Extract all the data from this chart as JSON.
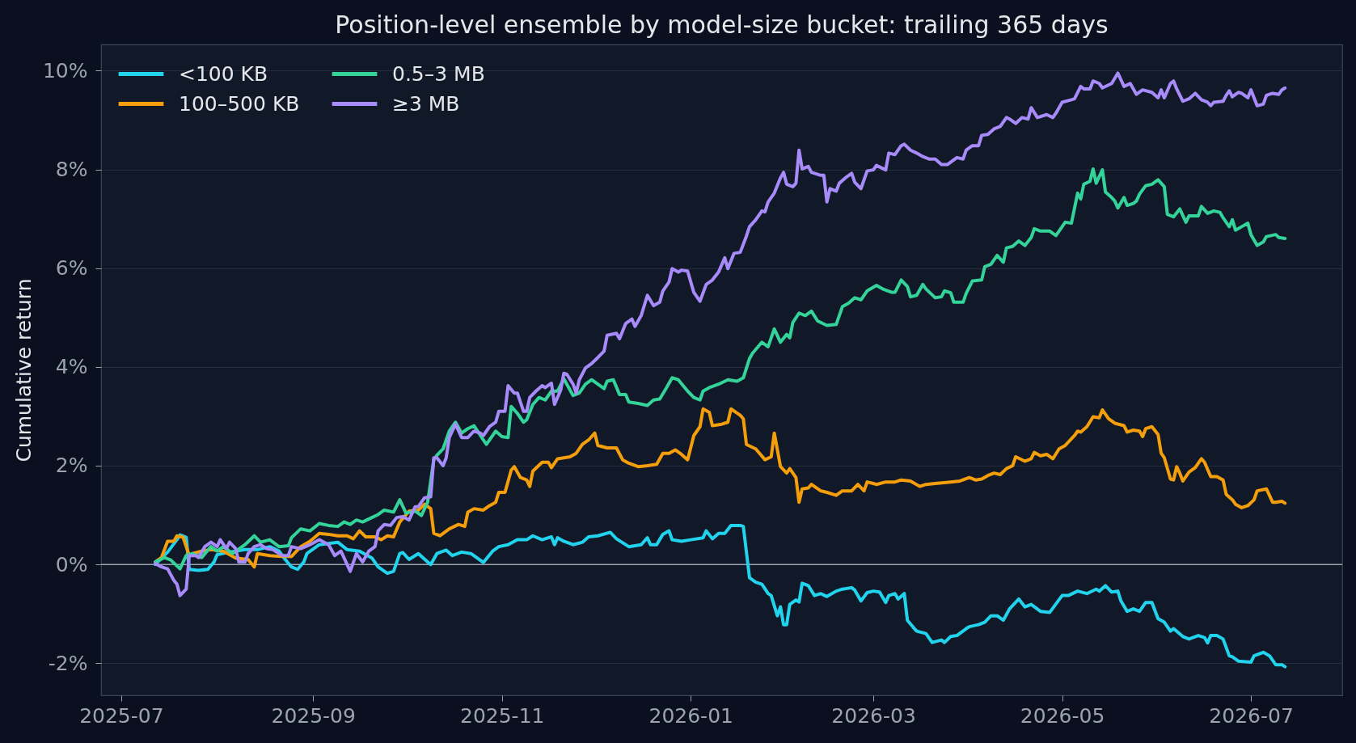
{
  "chart_data": {
    "type": "line",
    "title": "Position-level ensemble by model-size bucket: trailing 365 days",
    "ylabel": "Cumulative return",
    "xlim": [
      "2025-06-24T12:00",
      "2026-07-30T12:00"
    ],
    "xticks": [
      "2025-07",
      "2025-09",
      "2025-11",
      "2026-01",
      "2026-03",
      "2026-05",
      "2026-07"
    ],
    "ylim": [
      -2.65,
      10.53
    ],
    "yticks": [
      {
        "value": -2,
        "label": "-2%"
      },
      {
        "value": 0,
        "label": "0%"
      },
      {
        "value": 2,
        "label": "2%"
      },
      {
        "value": 4,
        "label": "4%"
      },
      {
        "value": 6,
        "label": "6%"
      },
      {
        "value": 8,
        "label": "8%"
      },
      {
        "value": 10,
        "label": "10%"
      }
    ],
    "grid": "y",
    "legend": "top left",
    "line_style": "solid",
    "ref_lines": [
      {
        "axis": "y",
        "value": 0,
        "color": "#9ca3af"
      }
    ],
    "series": [
      {
        "name": "<100 KB",
        "color": "#22d3ee",
        "x": [
          "2025-07-12",
          "2025-07-16",
          "2025-07-19",
          "2025-07-20",
          "2025-07-22",
          "2025-07-23",
          "2025-07-26",
          "2025-07-29",
          "2025-07-31",
          "2025-08-01",
          "2025-08-05",
          "2025-08-10",
          "2025-08-14",
          "2025-08-18",
          "2025-08-21",
          "2025-08-23",
          "2025-08-25",
          "2025-08-27",
          "2025-08-29",
          "2025-08-30",
          "2025-09-03",
          "2025-09-09",
          "2025-09-12",
          "2025-09-16",
          "2025-09-20",
          "2025-09-22",
          "2025-09-25",
          "2025-09-27",
          "2025-09-29",
          "2025-09-30",
          "2025-10-02",
          "2025-10-05",
          "2025-10-08",
          "2025-10-09",
          "2025-10-11",
          "2025-10-14",
          "2025-10-16",
          "2025-10-19",
          "2025-10-22",
          "2025-10-24",
          "2025-10-26",
          "2025-10-29",
          "2025-10-31",
          "2025-11-03",
          "2025-11-06",
          "2025-11-09",
          "2025-11-11",
          "2025-11-14",
          "2025-11-17",
          "2025-11-18",
          "2025-11-19",
          "2025-11-21",
          "2025-11-24",
          "2025-11-27",
          "2025-11-29",
          "2025-12-02",
          "2025-12-06",
          "2025-12-08",
          "2025-12-12",
          "2025-12-14",
          "2025-12-16",
          "2025-12-18",
          "2025-12-19",
          "2025-12-21",
          "2025-12-23",
          "2025-12-25",
          "2025-12-26",
          "2025-12-29",
          "2026-01-01",
          "2026-01-05",
          "2026-01-06",
          "2026-01-08",
          "2026-01-10",
          "2026-01-12",
          "2026-01-14",
          "2026-01-17",
          "2026-01-18",
          "2026-01-20",
          "2026-01-22",
          "2026-01-24",
          "2026-01-26",
          "2026-01-27",
          "2026-01-29",
          "2026-01-30",
          "2026-01-31",
          "2026-02-01",
          "2026-02-02",
          "2026-02-04",
          "2026-02-05",
          "2026-02-06",
          "2026-02-08",
          "2026-02-10",
          "2026-02-12",
          "2026-02-14",
          "2026-02-17",
          "2026-02-19",
          "2026-02-22",
          "2026-02-23",
          "2026-02-25",
          "2026-02-27",
          "2026-03-01",
          "2026-03-03",
          "2026-03-05",
          "2026-03-06",
          "2026-03-08",
          "2026-03-09",
          "2026-03-11",
          "2026-03-12",
          "2026-03-14",
          "2026-03-15",
          "2026-03-18",
          "2026-03-20",
          "2026-03-23",
          "2026-03-24",
          "2026-03-26",
          "2026-03-28",
          "2026-03-31",
          "2026-04-01",
          "2026-04-04",
          "2026-04-06",
          "2026-04-08",
          "2026-04-10",
          "2026-04-12",
          "2026-04-14",
          "2026-04-17",
          "2026-04-19",
          "2026-04-21",
          "2026-04-24",
          "2026-04-27",
          "2026-05-01",
          "2026-05-03",
          "2026-05-06",
          "2026-05-09",
          "2026-05-12",
          "2026-05-13",
          "2026-05-15",
          "2026-05-17",
          "2026-05-19",
          "2026-05-20",
          "2026-05-22",
          "2026-05-24",
          "2026-05-26",
          "2026-05-28",
          "2026-05-30",
          "2026-06-01",
          "2026-06-03",
          "2026-06-05",
          "2026-06-06",
          "2026-06-09",
          "2026-06-11",
          "2026-06-14",
          "2026-06-16",
          "2026-06-17",
          "2026-06-18",
          "2026-06-20",
          "2026-06-22",
          "2026-06-24",
          "2026-06-25",
          "2026-06-27",
          "2026-07-01",
          "2026-07-02",
          "2026-07-05",
          "2026-07-07",
          "2026-07-09",
          "2026-07-11",
          "2026-07-12"
        ],
        "values": [
          0.0,
          0.25,
          0.5,
          0.6,
          0.55,
          -0.1,
          -0.12,
          -0.1,
          0.05,
          0.2,
          0.25,
          0.3,
          0.3,
          0.36,
          0.27,
          0.1,
          -0.05,
          -0.1,
          0.05,
          0.22,
          0.4,
          0.45,
          0.3,
          0.27,
          0.13,
          -0.05,
          -0.18,
          -0.14,
          0.22,
          0.24,
          0.1,
          0.22,
          0.05,
          0.0,
          0.22,
          0.29,
          0.18,
          0.25,
          0.22,
          0.13,
          0.04,
          0.27,
          0.36,
          0.4,
          0.5,
          0.5,
          0.58,
          0.5,
          0.56,
          0.4,
          0.54,
          0.47,
          0.4,
          0.45,
          0.56,
          0.58,
          0.65,
          0.52,
          0.36,
          0.38,
          0.4,
          0.54,
          0.4,
          0.4,
          0.61,
          0.68,
          0.5,
          0.47,
          0.5,
          0.54,
          0.68,
          0.52,
          0.63,
          0.63,
          0.79,
          0.79,
          0.77,
          -0.27,
          -0.36,
          -0.4,
          -0.59,
          -0.63,
          -1.04,
          -0.86,
          -1.22,
          -1.22,
          -0.81,
          -0.72,
          -0.76,
          -0.38,
          -0.43,
          -0.63,
          -0.59,
          -0.65,
          -0.54,
          -0.5,
          -0.47,
          -0.52,
          -0.74,
          -0.57,
          -0.54,
          -0.56,
          -0.77,
          -0.63,
          -0.59,
          -0.7,
          -0.59,
          -1.13,
          -1.28,
          -1.35,
          -1.4,
          -1.58,
          -1.53,
          -1.58,
          -1.46,
          -1.44,
          -1.3,
          -1.26,
          -1.22,
          -1.17,
          -1.04,
          -1.04,
          -1.13,
          -0.9,
          -0.7,
          -0.86,
          -0.81,
          -0.95,
          -0.97,
          -0.63,
          -0.63,
          -0.54,
          -0.59,
          -0.5,
          -0.54,
          -0.43,
          -0.56,
          -0.54,
          -0.74,
          -0.95,
          -0.9,
          -0.95,
          -0.77,
          -0.77,
          -1.1,
          -1.17,
          -1.35,
          -1.3,
          -1.46,
          -1.51,
          -1.44,
          -1.48,
          -1.59,
          -1.44,
          -1.44,
          -1.51,
          -1.85,
          -1.87,
          -1.96,
          -1.98,
          -1.85,
          -1.78,
          -1.85,
          -2.03,
          -2.03,
          -2.07
        ]
      },
      {
        "name": "100–500 KB",
        "color": "#f59e0b",
        "x": [
          "2025-07-12",
          "2025-07-14",
          "2025-07-16",
          "2025-07-18",
          "2025-07-19",
          "2025-07-21",
          "2025-07-23",
          "2025-07-24",
          "2025-07-27",
          "2025-07-30",
          "2025-08-03",
          "2025-08-07",
          "2025-08-11",
          "2025-08-13",
          "2025-08-14",
          "2025-08-18",
          "2025-08-22",
          "2025-08-25",
          "2025-08-28",
          "2025-08-31",
          "2025-09-03",
          "2025-09-06",
          "2025-09-09",
          "2025-09-12",
          "2025-09-14",
          "2025-09-16",
          "2025-09-18",
          "2025-09-21",
          "2025-09-23",
          "2025-09-25",
          "2025-09-27",
          "2025-09-29",
          "2025-10-02",
          "2025-10-05",
          "2025-10-07",
          "2025-10-09",
          "2025-10-10",
          "2025-10-12",
          "2025-10-15",
          "2025-10-18",
          "2025-10-20",
          "2025-10-21",
          "2025-10-23",
          "2025-10-26",
          "2025-10-28",
          "2025-10-30",
          "2025-10-31",
          "2025-11-02",
          "2025-11-04",
          "2025-11-05",
          "2025-11-07",
          "2025-11-09",
          "2025-11-10",
          "2025-11-11",
          "2025-11-14",
          "2025-11-16",
          "2025-11-17",
          "2025-11-19",
          "2025-11-21",
          "2025-11-23",
          "2025-11-25",
          "2025-11-27",
          "2025-11-29",
          "2025-12-01",
          "2025-12-02",
          "2025-12-05",
          "2025-12-08",
          "2025-12-10",
          "2025-12-12",
          "2025-12-15",
          "2025-12-18",
          "2025-12-21",
          "2025-12-23",
          "2025-12-25",
          "2025-12-27",
          "2025-12-29",
          "2025-12-31",
          "2026-01-02",
          "2026-01-04",
          "2026-01-05",
          "2026-01-07",
          "2026-01-08",
          "2026-01-11",
          "2026-01-13",
          "2026-01-14",
          "2026-01-17",
          "2026-01-18",
          "2026-01-19",
          "2026-01-22",
          "2026-01-25",
          "2026-01-27",
          "2026-01-28",
          "2026-01-30",
          "2026-02-01",
          "2026-02-02",
          "2026-02-04",
          "2026-02-05",
          "2026-02-06",
          "2026-02-08",
          "2026-02-09",
          "2026-02-12",
          "2026-02-14",
          "2026-02-17",
          "2026-02-19",
          "2026-02-22",
          "2026-02-24",
          "2026-02-26",
          "2026-02-27",
          "2026-03-01",
          "2026-03-02",
          "2026-03-05",
          "2026-03-08",
          "2026-03-10",
          "2026-03-13",
          "2026-03-16",
          "2026-03-18",
          "2026-03-21",
          "2026-03-26",
          "2026-03-29",
          "2026-04-01",
          "2026-04-03",
          "2026-04-05",
          "2026-04-07",
          "2026-04-09",
          "2026-04-11",
          "2026-04-13",
          "2026-04-15",
          "2026-04-16",
          "2026-04-19",
          "2026-04-21",
          "2026-04-22",
          "2026-04-24",
          "2026-04-26",
          "2026-04-28",
          "2026-04-30",
          "2026-05-02",
          "2026-05-05",
          "2026-05-06",
          "2026-05-07",
          "2026-05-09",
          "2026-05-11",
          "2026-05-13",
          "2026-05-14",
          "2026-05-16",
          "2026-05-18",
          "2026-05-21",
          "2026-05-22",
          "2026-05-24",
          "2026-05-26",
          "2026-05-27",
          "2026-05-28",
          "2026-05-30",
          "2026-06-01",
          "2026-06-02",
          "2026-06-03",
          "2026-06-05",
          "2026-06-06",
          "2026-06-07",
          "2026-06-08",
          "2026-06-09",
          "2026-06-11",
          "2026-06-13",
          "2026-06-15",
          "2026-06-16",
          "2026-06-18",
          "2026-06-20",
          "2026-06-22",
          "2026-06-23",
          "2026-06-25",
          "2026-06-26",
          "2026-06-28",
          "2026-06-30",
          "2026-07-02",
          "2026-07-03",
          "2026-07-06",
          "2026-07-08",
          "2026-07-09",
          "2026-07-11",
          "2026-07-12"
        ],
        "values": [
          0.05,
          0.14,
          0.47,
          0.47,
          0.58,
          0.55,
          0.18,
          0.22,
          0.27,
          0.3,
          0.27,
          0.13,
          0.1,
          -0.05,
          0.22,
          0.18,
          0.16,
          0.16,
          0.36,
          0.47,
          0.63,
          0.61,
          0.58,
          0.58,
          0.52,
          0.68,
          0.56,
          0.56,
          0.5,
          0.58,
          0.56,
          0.86,
          1.08,
          1.1,
          1.22,
          1.13,
          0.63,
          0.58,
          0.72,
          0.81,
          0.77,
          1.06,
          1.13,
          1.1,
          1.19,
          1.26,
          1.46,
          1.46,
          1.91,
          1.98,
          1.76,
          1.71,
          1.58,
          1.89,
          2.07,
          2.07,
          1.96,
          2.14,
          2.16,
          2.18,
          2.25,
          2.43,
          2.52,
          2.66,
          2.41,
          2.36,
          2.36,
          2.12,
          2.05,
          1.98,
          2.0,
          2.03,
          2.25,
          2.25,
          2.32,
          2.23,
          2.12,
          2.61,
          2.79,
          3.15,
          3.08,
          2.81,
          2.84,
          2.88,
          3.15,
          3.02,
          2.95,
          2.43,
          2.34,
          2.12,
          2.18,
          2.66,
          1.98,
          1.85,
          1.94,
          1.76,
          1.26,
          1.53,
          1.55,
          1.62,
          1.49,
          1.46,
          1.4,
          1.49,
          1.49,
          1.62,
          1.49,
          1.67,
          1.64,
          1.62,
          1.67,
          1.67,
          1.71,
          1.69,
          1.58,
          1.62,
          1.64,
          1.67,
          1.69,
          1.76,
          1.71,
          1.73,
          1.8,
          1.85,
          1.82,
          1.94,
          2.0,
          2.18,
          2.09,
          2.14,
          2.27,
          2.2,
          2.23,
          2.14,
          2.34,
          2.41,
          2.61,
          2.7,
          2.68,
          2.79,
          2.99,
          2.97,
          3.13,
          2.95,
          2.86,
          2.81,
          2.68,
          2.72,
          2.7,
          2.59,
          2.75,
          2.79,
          2.63,
          2.25,
          2.16,
          1.73,
          1.71,
          1.98,
          1.85,
          1.69,
          1.87,
          1.96,
          2.14,
          2.07,
          1.78,
          1.78,
          1.71,
          1.42,
          1.31,
          1.22,
          1.15,
          1.19,
          1.31,
          1.49,
          1.53,
          1.26,
          1.26,
          1.28,
          1.24
        ]
      },
      {
        "name": "0.5–3 MB",
        "color": "#34d399",
        "x": [
          "2025-07-12",
          "2025-07-15",
          "2025-07-17",
          "2025-07-20",
          "2025-07-22",
          "2025-07-24",
          "2025-07-27",
          "2025-07-30",
          "2025-08-01",
          "2025-08-03",
          "2025-08-06",
          "2025-08-10",
          "2025-08-13",
          "2025-08-15",
          "2025-08-18",
          "2025-08-21",
          "2025-08-24",
          "2025-08-25",
          "2025-08-28",
          "2025-08-31",
          "2025-09-03",
          "2025-09-06",
          "2025-09-09",
          "2025-09-11",
          "2025-09-13",
          "2025-09-15",
          "2025-09-17",
          "2025-09-20",
          "2025-09-22",
          "2025-09-24",
          "2025-09-27",
          "2025-09-29",
          "2025-10-01",
          "2025-10-04",
          "2025-10-06",
          "2025-10-08",
          "2025-10-10",
          "2025-10-11",
          "2025-10-13",
          "2025-10-15",
          "2025-10-17",
          "2025-10-19",
          "2025-10-21",
          "2025-10-23",
          "2025-10-26",
          "2025-10-27",
          "2025-10-30",
          "2025-11-01",
          "2025-11-03",
          "2025-11-04",
          "2025-11-06",
          "2025-11-08",
          "2025-11-09",
          "2025-11-11",
          "2025-11-13",
          "2025-11-15",
          "2025-11-17",
          "2025-11-19",
          "2025-11-21",
          "2025-11-24",
          "2025-11-26",
          "2025-11-28",
          "2025-11-30",
          "2025-12-02",
          "2025-12-04",
          "2025-12-05",
          "2025-12-07",
          "2025-12-09",
          "2025-12-11",
          "2025-12-12",
          "2025-12-15",
          "2025-12-18",
          "2025-12-20",
          "2025-12-22",
          "2025-12-24",
          "2025-12-26",
          "2025-12-28",
          "2025-12-31",
          "2026-01-02",
          "2026-01-04",
          "2026-01-05",
          "2026-01-07",
          "2026-01-10",
          "2026-01-13",
          "2026-01-16",
          "2026-01-18",
          "2026-01-20",
          "2026-01-21",
          "2026-01-24",
          "2026-01-26",
          "2026-01-28",
          "2026-01-30",
          "2026-02-01",
          "2026-02-02",
          "2026-02-03",
          "2026-02-05",
          "2026-02-07",
          "2026-02-09",
          "2026-02-11",
          "2026-02-14",
          "2026-02-17",
          "2026-02-19",
          "2026-02-21",
          "2026-02-23",
          "2026-02-25",
          "2026-02-27",
          "2026-03-02",
          "2026-03-04",
          "2026-03-07",
          "2026-03-08",
          "2026-03-10",
          "2026-03-12",
          "2026-03-13",
          "2026-03-15",
          "2026-03-17",
          "2026-03-18",
          "2026-03-21",
          "2026-03-23",
          "2026-03-24",
          "2026-03-26",
          "2026-03-27",
          "2026-03-30",
          "2026-03-31",
          "2026-04-02",
          "2026-04-05",
          "2026-04-06",
          "2026-04-08",
          "2026-04-10",
          "2026-04-12",
          "2026-04-13",
          "2026-04-15",
          "2026-04-17",
          "2026-04-19",
          "2026-04-21",
          "2026-04-22",
          "2026-04-24",
          "2026-04-27",
          "2026-04-29",
          "2026-05-02",
          "2026-05-04",
          "2026-05-06",
          "2026-05-07",
          "2026-05-08",
          "2026-05-10",
          "2026-05-11",
          "2026-05-12",
          "2026-05-14",
          "2026-05-15",
          "2026-05-17",
          "2026-05-18",
          "2026-05-19",
          "2026-05-21",
          "2026-05-22",
          "2026-05-24",
          "2026-05-25",
          "2026-05-26",
          "2026-05-28",
          "2026-05-30",
          "2026-06-01",
          "2026-06-03",
          "2026-06-04",
          "2026-06-06",
          "2026-06-08",
          "2026-06-10",
          "2026-06-11",
          "2026-06-14",
          "2026-06-15",
          "2026-06-17",
          "2026-06-19",
          "2026-06-21",
          "2026-06-22",
          "2026-06-24",
          "2026-06-25",
          "2026-06-26",
          "2026-06-28",
          "2026-06-30",
          "2026-07-01",
          "2026-07-03",
          "2026-07-05",
          "2026-07-06",
          "2026-07-09",
          "2026-07-10",
          "2026-07-12"
        ],
        "values": [
          0.05,
          0.14,
          0.09,
          -0.09,
          0.18,
          0.22,
          0.14,
          0.36,
          0.27,
          0.36,
          0.22,
          0.4,
          0.58,
          0.45,
          0.5,
          0.36,
          0.38,
          0.54,
          0.72,
          0.68,
          0.83,
          0.79,
          0.77,
          0.86,
          0.81,
          0.9,
          0.86,
          0.95,
          1.01,
          1.1,
          1.06,
          1.31,
          1.04,
          1.08,
          0.99,
          1.26,
          2.12,
          2.21,
          2.34,
          2.7,
          2.88,
          2.66,
          2.75,
          2.81,
          2.52,
          2.43,
          2.7,
          2.59,
          2.57,
          3.2,
          3.06,
          2.88,
          2.93,
          3.24,
          3.38,
          3.33,
          3.51,
          3.51,
          3.76,
          3.42,
          3.47,
          3.65,
          3.74,
          3.65,
          3.56,
          3.71,
          3.74,
          3.44,
          3.44,
          3.29,
          3.26,
          3.22,
          3.33,
          3.35,
          3.56,
          3.78,
          3.74,
          3.51,
          3.38,
          3.33,
          3.51,
          3.58,
          3.65,
          3.74,
          3.71,
          3.78,
          4.17,
          4.28,
          4.5,
          4.41,
          4.77,
          4.5,
          4.66,
          4.59,
          4.9,
          5.09,
          5.04,
          5.13,
          4.93,
          4.84,
          4.86,
          5.22,
          5.29,
          5.4,
          5.36,
          5.54,
          5.65,
          5.58,
          5.51,
          5.51,
          5.76,
          5.63,
          5.42,
          5.45,
          5.67,
          5.58,
          5.4,
          5.42,
          5.54,
          5.5,
          5.31,
          5.31,
          5.49,
          5.74,
          5.76,
          6.03,
          6.08,
          6.26,
          6.12,
          6.41,
          6.44,
          6.55,
          6.46,
          6.62,
          6.8,
          6.75,
          6.75,
          6.66,
          6.93,
          6.91,
          7.52,
          7.4,
          7.7,
          7.76,
          8.01,
          7.72,
          7.99,
          7.54,
          7.43,
          7.36,
          7.22,
          7.43,
          7.27,
          7.31,
          7.36,
          7.5,
          7.67,
          7.7,
          7.79,
          7.65,
          7.09,
          7.04,
          7.2,
          6.93,
          7.06,
          7.06,
          7.25,
          7.11,
          7.16,
          7.13,
          7.02,
          6.84,
          6.98,
          6.77,
          6.84,
          6.91,
          6.68,
          6.46,
          6.53,
          6.64,
          6.68,
          6.62,
          6.6
        ]
      },
      {
        "name": "≥3 MB",
        "color": "#a78bfa",
        "x": [
          "2025-07-12",
          "2025-07-14",
          "2025-07-16",
          "2025-07-18",
          "2025-07-19",
          "2025-07-20",
          "2025-07-22",
          "2025-07-23",
          "2025-07-25",
          "2025-07-26",
          "2025-07-28",
          "2025-07-30",
          "2025-08-01",
          "2025-08-02",
          "2025-08-04",
          "2025-08-05",
          "2025-08-07",
          "2025-08-08",
          "2025-08-10",
          "2025-08-11",
          "2025-08-13",
          "2025-08-15",
          "2025-08-17",
          "2025-08-19",
          "2025-08-22",
          "2025-08-24",
          "2025-08-25",
          "2025-08-28",
          "2025-08-31",
          "2025-09-03",
          "2025-09-06",
          "2025-09-08",
          "2025-09-10",
          "2025-09-13",
          "2025-09-15",
          "2025-09-17",
          "2025-09-19",
          "2025-09-21",
          "2025-09-22",
          "2025-09-24",
          "2025-09-26",
          "2025-09-28",
          "2025-09-30",
          "2025-10-02",
          "2025-10-04",
          "2025-10-05",
          "2025-10-07",
          "2025-10-09",
          "2025-10-10",
          "2025-10-11",
          "2025-10-13",
          "2025-10-14",
          "2025-10-15",
          "2025-10-17",
          "2025-10-19",
          "2025-10-21",
          "2025-10-23",
          "2025-10-25",
          "2025-10-26",
          "2025-10-28",
          "2025-10-30",
          "2025-10-31",
          "2025-11-02",
          "2025-11-03",
          "2025-11-05",
          "2025-11-06",
          "2025-11-08",
          "2025-11-09",
          "2025-11-10",
          "2025-11-12",
          "2025-11-14",
          "2025-11-15",
          "2025-11-17",
          "2025-11-18",
          "2025-11-20",
          "2025-11-21",
          "2025-11-22",
          "2025-11-24",
          "2025-11-25",
          "2025-11-26",
          "2025-11-28",
          "2025-11-30",
          "2025-12-02",
          "2025-12-04",
          "2025-12-05",
          "2025-12-08",
          "2025-12-09",
          "2025-12-11",
          "2025-12-13",
          "2025-12-14",
          "2025-12-16",
          "2025-12-18",
          "2025-12-20",
          "2025-12-22",
          "2025-12-23",
          "2025-12-25",
          "2025-12-26",
          "2025-12-28",
          "2025-12-29",
          "2025-12-31",
          "2026-01-02",
          "2026-01-04",
          "2026-01-06",
          "2026-01-08",
          "2026-01-10",
          "2026-01-12",
          "2026-01-13",
          "2026-01-15",
          "2026-01-17",
          "2026-01-19",
          "2026-01-20",
          "2026-01-22",
          "2026-01-24",
          "2026-01-25",
          "2026-01-26",
          "2026-01-28",
          "2026-01-30",
          "2026-01-31",
          "2026-02-01",
          "2026-02-03",
          "2026-02-04",
          "2026-02-05",
          "2026-02-06",
          "2026-02-08",
          "2026-02-09",
          "2026-02-12",
          "2026-02-13",
          "2026-02-14",
          "2026-02-15",
          "2026-02-17",
          "2026-02-18",
          "2026-02-20",
          "2026-02-22",
          "2026-02-23",
          "2026-02-25",
          "2026-02-27",
          "2026-03-01",
          "2026-03-02",
          "2026-03-05",
          "2026-03-06",
          "2026-03-08",
          "2026-03-10",
          "2026-03-11",
          "2026-03-13",
          "2026-03-15",
          "2026-03-17",
          "2026-03-19",
          "2026-03-21",
          "2026-03-23",
          "2026-03-25",
          "2026-03-28",
          "2026-03-30",
          "2026-03-31",
          "2026-04-02",
          "2026-04-04",
          "2026-04-05",
          "2026-04-07",
          "2026-04-09",
          "2026-04-11",
          "2026-04-13",
          "2026-04-14",
          "2026-04-16",
          "2026-04-18",
          "2026-04-20",
          "2026-04-21",
          "2026-04-23",
          "2026-04-26",
          "2026-04-28",
          "2026-04-29",
          "2026-05-01",
          "2026-05-04",
          "2026-05-05",
          "2026-05-07",
          "2026-05-08",
          "2026-05-10",
          "2026-05-11",
          "2026-05-13",
          "2026-05-14",
          "2026-05-17",
          "2026-05-19",
          "2026-05-21",
          "2026-05-23",
          "2026-05-25",
          "2026-05-27",
          "2026-05-30",
          "2026-06-01",
          "2026-06-02",
          "2026-06-03",
          "2026-06-05",
          "2026-06-06",
          "2026-06-07",
          "2026-06-09",
          "2026-06-11",
          "2026-06-13",
          "2026-06-15",
          "2026-06-17",
          "2026-06-18",
          "2026-06-19",
          "2026-06-22",
          "2026-06-23",
          "2026-06-24",
          "2026-06-25",
          "2026-06-27",
          "2026-06-28",
          "2026-06-30",
          "2026-07-01",
          "2026-07-03",
          "2026-07-05",
          "2026-07-06",
          "2026-07-08",
          "2026-07-10",
          "2026-07-11",
          "2026-07-12"
        ],
        "values": [
          0.02,
          -0.05,
          -0.09,
          -0.32,
          -0.4,
          -0.63,
          -0.5,
          0.18,
          0.18,
          0.14,
          0.36,
          0.45,
          0.36,
          0.5,
          0.32,
          0.45,
          0.32,
          0.05,
          0.05,
          0.22,
          0.36,
          0.4,
          0.32,
          0.3,
          0.18,
          0.18,
          0.36,
          0.32,
          0.4,
          0.5,
          0.4,
          0.18,
          0.27,
          -0.14,
          0.22,
          0.05,
          0.27,
          0.36,
          0.68,
          0.81,
          0.79,
          0.95,
          0.97,
          0.9,
          1.17,
          1.17,
          1.35,
          1.37,
          2.16,
          2.16,
          2.0,
          2.16,
          2.57,
          2.84,
          2.57,
          2.57,
          2.7,
          2.66,
          2.61,
          2.79,
          2.88,
          3.1,
          3.1,
          3.62,
          3.47,
          3.47,
          3.1,
          3.1,
          3.38,
          3.51,
          3.62,
          3.58,
          3.67,
          3.24,
          3.53,
          3.87,
          3.85,
          3.65,
          3.47,
          3.74,
          3.98,
          4.07,
          4.19,
          4.32,
          4.64,
          4.68,
          4.57,
          4.88,
          4.97,
          4.82,
          5.04,
          5.45,
          5.24,
          5.31,
          5.54,
          5.72,
          5.99,
          5.92,
          5.96,
          5.94,
          5.51,
          5.33,
          5.67,
          5.76,
          5.92,
          6.21,
          5.99,
          6.3,
          6.32,
          6.65,
          6.84,
          6.98,
          7.16,
          7.14,
          7.34,
          7.52,
          7.83,
          7.94,
          7.7,
          7.65,
          7.72,
          8.39,
          8.01,
          8.06,
          7.94,
          7.88,
          7.88,
          7.34,
          7.61,
          7.56,
          7.72,
          7.83,
          7.92,
          7.74,
          7.61,
          7.97,
          7.99,
          8.08,
          7.99,
          8.33,
          8.3,
          8.48,
          8.51,
          8.39,
          8.33,
          8.26,
          8.21,
          8.21,
          8.1,
          8.1,
          8.24,
          8.21,
          8.39,
          8.48,
          8.48,
          8.69,
          8.71,
          8.82,
          8.87,
          9.05,
          9.02,
          8.93,
          9.05,
          9.02,
          9.25,
          9.05,
          9.11,
          9.05,
          9.14,
          9.36,
          9.41,
          9.43,
          9.68,
          9.63,
          9.63,
          9.79,
          9.74,
          9.65,
          9.74,
          9.95,
          9.68,
          9.74,
          9.52,
          9.61,
          9.56,
          9.45,
          9.61,
          9.45,
          9.74,
          9.79,
          9.63,
          9.38,
          9.43,
          9.54,
          9.41,
          9.36,
          9.29,
          9.36,
          9.38,
          9.5,
          9.59,
          9.47,
          9.56,
          9.54,
          9.45,
          9.61,
          9.29,
          9.32,
          9.5,
          9.54,
          9.52,
          9.61,
          9.65
        ]
      }
    ]
  }
}
